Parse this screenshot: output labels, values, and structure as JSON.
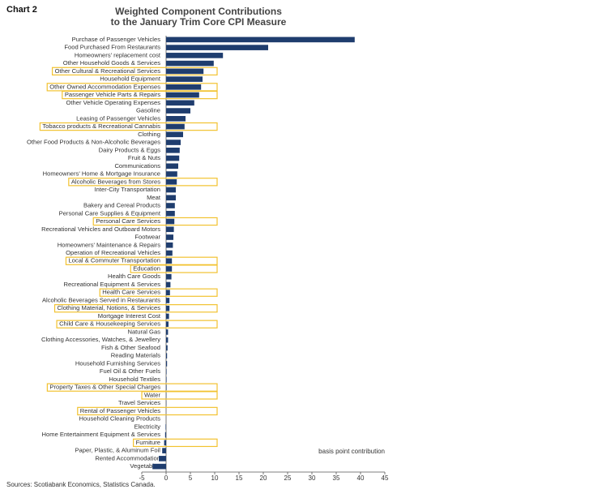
{
  "chart_data": {
    "type": "hbar",
    "chart_label": "Chart 2",
    "title": [
      "Weighted Component Contributions",
      "to the January Trim Core CPI Measure"
    ],
    "annotation": "basis point contribution",
    "source": "Sources: Scotiabank Economics, Statistics Canada.",
    "color": "#1f3d6e",
    "highlight_color": "#f2c230",
    "categories": [
      "Purchase of Passenger Vehicles",
      "Food Purchased From Restaurants",
      "Homeowners' replacement cost",
      "Other Household Goods & Services",
      "Other Cultural & Recreational Services",
      "Household Equipment",
      "Other Owned Accommodation Expenses",
      "Passenger Vehicle Parts & Repairs",
      "Other Vehicle Operating Expenses",
      "Gasoline",
      "Leasing of Passenger Vehicles",
      "Tobacco products & Recreational Cannabis",
      "Clothing",
      "Other Food Products & Non-Alcoholic Beverages",
      "Dairy Products & Eggs",
      "Fruit & Nuts",
      "Communications",
      "Homeowners' Home & Mortgage Insurance",
      "Alcoholic Beverages from Stores",
      "Inter-City Transportation",
      "Meat",
      "Bakery and Cereal Products",
      "Personal Care Supplies & Equipment",
      "Personal Care Services",
      "Recreational Vehicles and Outboard Motors",
      "Footwear",
      "Homeowners' Maintenance & Repairs",
      "Operation of Recreational Vehicles",
      "Local & Commuter Transportation",
      "Education",
      "Health Care Goods",
      "Recreational Equipment & Services",
      "Health Care Services",
      "Alcoholic Beverages Served in Restaurants",
      "Clothing Material, Notions, & Services",
      "Mortgage Interest Cost",
      "Child Care & Housekeeping Services",
      "Natural Gas",
      "Clothing Accessories, Watches, & Jewellery",
      "Fish & Other Seafood",
      "Reading Materials",
      "Household Furnishing Services",
      "Fuel Oil & Other Fuels",
      "Household Textiles",
      "Property Taxes & Other Special Charges",
      "Water",
      "Travel Services",
      "Rental of Passenger Vehicles",
      "Household Cleaning Products",
      "Electricity",
      "Home Entertainment Equipment & Services",
      "Furniture",
      "Paper, Plastic, & Aluminum Foil",
      "Rented Accommodation",
      "Vegetables"
    ],
    "values": [
      38.8,
      21,
      11.7,
      9.8,
      7.7,
      7.5,
      7.2,
      6.8,
      5.8,
      5,
      4,
      3.8,
      3.5,
      3,
      2.8,
      2.7,
      2.5,
      2.3,
      2.2,
      2,
      2,
      1.8,
      1.8,
      1.7,
      1.6,
      1.5,
      1.4,
      1.3,
      1.2,
      1.2,
      1.1,
      0.9,
      0.8,
      0.7,
      0.7,
      0.6,
      0.5,
      0.4,
      0.4,
      0.3,
      0.2,
      0.2,
      0.1,
      0.1,
      0.1,
      0.05,
      0.05,
      0,
      0,
      -0.1,
      -0.2,
      -0.4,
      -0.8,
      -1.5,
      -2.8
    ],
    "highlighted": [
      false,
      false,
      false,
      false,
      true,
      false,
      true,
      true,
      false,
      false,
      false,
      true,
      false,
      false,
      false,
      false,
      false,
      false,
      true,
      false,
      false,
      false,
      false,
      true,
      false,
      false,
      false,
      false,
      true,
      true,
      false,
      false,
      true,
      false,
      true,
      false,
      true,
      false,
      false,
      false,
      false,
      false,
      false,
      false,
      true,
      true,
      false,
      true,
      false,
      false,
      false,
      true,
      false,
      false,
      false
    ],
    "xlim": [
      -5,
      45
    ],
    "xticks": [
      -5,
      0,
      5,
      10,
      15,
      20,
      25,
      30,
      35,
      40,
      45
    ]
  }
}
